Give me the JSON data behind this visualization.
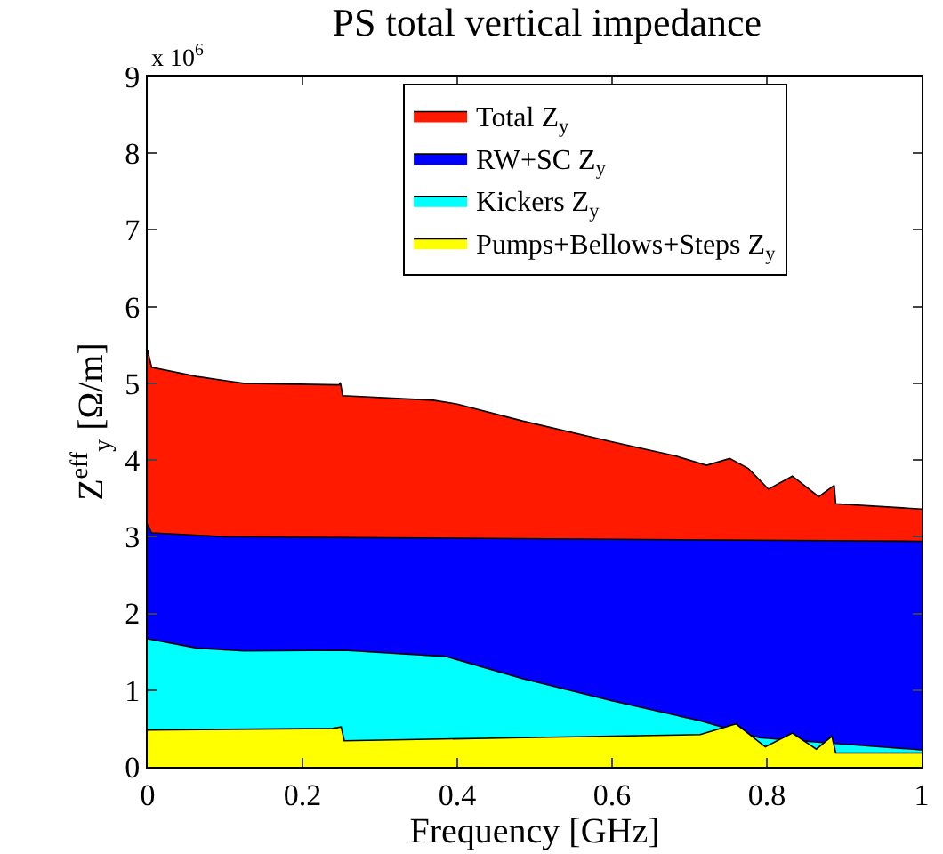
{
  "chart_data": {
    "type": "area",
    "title": "PS total vertical impedance",
    "xlabel": "Frequency [GHz]",
    "ylabel": "Z$^{eff}$$_{y}$ [Ω/m]",
    "annotations": [
      "x 10$^{6}$"
    ],
    "xlim": [
      0,
      1
    ],
    "xticks": [
      0,
      0.2,
      0.4,
      0.6,
      0.8,
      1
    ],
    "ylim": [
      0,
      9
    ],
    "yticks": [
      0,
      1,
      2,
      3,
      4,
      5,
      6,
      7,
      8,
      9
    ],
    "grid": false,
    "legend": "top right",
    "marker": "none",
    "series": [
      {
        "name": "Total Z$_{y}$",
        "color": "#ff1a00",
        "x": [
          0,
          0.005,
          0.063,
          0.124,
          0.247,
          0.249,
          0.252,
          0.369,
          0.4,
          0.484,
          0.599,
          0.683,
          0.722,
          0.752,
          0.776,
          0.802,
          0.833,
          0.867,
          0.887,
          0.889,
          1
        ],
        "values": [
          5.43,
          5.21,
          5.09,
          5.0,
          4.98,
          5.01,
          4.84,
          4.78,
          4.73,
          4.51,
          4.24,
          4.05,
          3.93,
          4.02,
          3.89,
          3.62,
          3.79,
          3.52,
          3.67,
          3.43,
          3.36
        ]
      },
      {
        "name": "RW+SC Z$_{y}$",
        "color": "#0000ff",
        "x": [
          0,
          0.005,
          0.1,
          1
        ],
        "values": [
          3.16,
          3.05,
          3.0,
          2.94
        ]
      },
      {
        "name": "Kickers Z$_{y}$",
        "color": "#00ffff",
        "x": [
          0,
          0.063,
          0.124,
          0.254,
          0.385,
          0.484,
          0.6,
          0.714,
          0.79,
          1
        ],
        "values": [
          1.67,
          1.55,
          1.51,
          1.52,
          1.44,
          1.15,
          0.86,
          0.6,
          0.38,
          0.22
        ]
      },
      {
        "name": "Pumps+Bellows+Steps Z$_{y}$",
        "color": "#ffff00",
        "x": [
          0,
          0.239,
          0.25,
          0.254,
          0.484,
          0.714,
          0.76,
          0.798,
          0.833,
          0.864,
          0.884,
          0.889,
          1
        ],
        "values": [
          0.48,
          0.5,
          0.52,
          0.34,
          0.38,
          0.42,
          0.56,
          0.26,
          0.44,
          0.23,
          0.4,
          0.18,
          0.18
        ]
      }
    ]
  }
}
